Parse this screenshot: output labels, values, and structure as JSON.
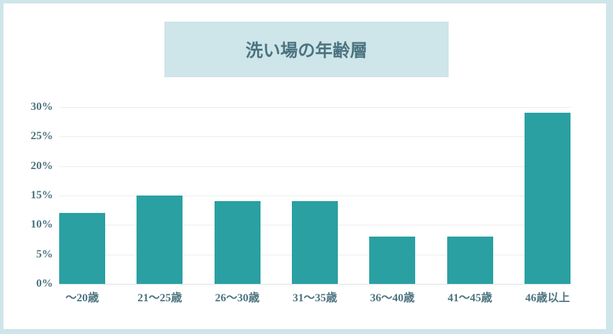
{
  "colors": {
    "bar": "#2aa0a2",
    "panel": "#cee5e9",
    "text": "#4c7480",
    "grid": "#e9eef0",
    "baseline": "#d9e3e6"
  },
  "chart_data": {
    "type": "bar",
    "title": "洗い場の年齢層",
    "categories": [
      "～20歳",
      "21～25歳",
      "26～30歳",
      "31～35歳",
      "36～40歳",
      "41～45歳",
      "46歳以上"
    ],
    "values": [
      12,
      15,
      14,
      14,
      8,
      8,
      29
    ],
    "unit": "%",
    "xlabel": "",
    "ylabel": "",
    "ylim": [
      0,
      30
    ],
    "y_tick_values": [
      0,
      5,
      10,
      15,
      20,
      25,
      30
    ],
    "y_ticks": [
      "0%",
      "5%",
      "10%",
      "15%",
      "20%",
      "25%",
      "30%"
    ],
    "grid": true,
    "legend": false
  }
}
